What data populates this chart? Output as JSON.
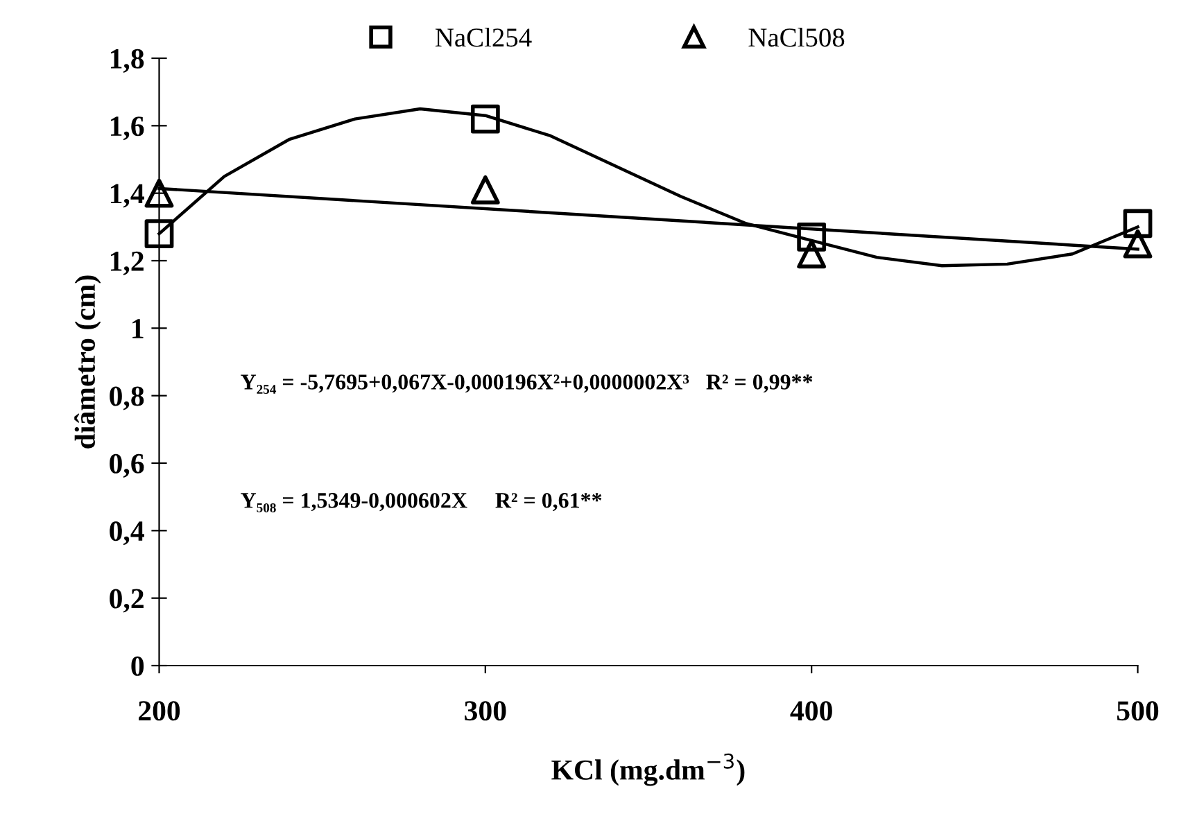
{
  "chart_data": {
    "type": "scatter",
    "xlabel": "KCl (mg.dm$^{−3}$)",
    "ylabel": "diâmetro (cm)",
    "xlim": [
      200,
      500
    ],
    "ylim": [
      0,
      1.8
    ],
    "xticks": [
      200,
      300,
      400,
      500
    ],
    "yticks": [
      {
        "value": 0,
        "label": "0"
      },
      {
        "value": 0.2,
        "label": "0,2"
      },
      {
        "value": 0.4,
        "label": "0,4"
      },
      {
        "value": 0.6,
        "label": "0,6"
      },
      {
        "value": 0.8,
        "label": "0,8"
      },
      {
        "value": 1,
        "label": "1"
      },
      {
        "value": 1.2,
        "label": "1,2"
      },
      {
        "value": 1.4,
        "label": "1,4"
      },
      {
        "value": 1.6,
        "label": "1,6"
      },
      {
        "value": 1.8,
        "label": "1,8"
      }
    ],
    "grid": false,
    "legend": "top",
    "series": [
      {
        "name": "NaCl254",
        "type": "scatter",
        "marker": "square",
        "color": "#000000",
        "x": [
          200,
          300,
          400,
          500
        ],
        "values": [
          1.28,
          1.62,
          1.27,
          1.31
        ]
      },
      {
        "name": "NaCl508",
        "type": "scatter",
        "marker": "triangle",
        "color": "#000000",
        "x": [
          200,
          300,
          400,
          500
        ],
        "values": [
          1.4,
          1.41,
          1.22,
          1.25
        ]
      },
      {
        "type": "line",
        "color": "#000000",
        "marker": "none",
        "x": [
          200,
          220,
          240,
          260,
          280,
          300,
          320,
          340,
          360,
          380,
          400,
          420,
          440,
          460,
          480,
          500
        ],
        "values": [
          1.28,
          1.45,
          1.56,
          1.62,
          1.65,
          1.63,
          1.57,
          1.48,
          1.39,
          1.31,
          1.26,
          1.21,
          1.185,
          1.19,
          1.22,
          1.3
        ]
      },
      {
        "type": "line",
        "color": "#000000",
        "marker": "none",
        "x": [
          200,
          500
        ],
        "values": [
          1.414,
          1.234
        ]
      }
    ],
    "annotations": [
      "Y₂₅₄ = -5,7695+0,067X-0,000196X²+0,0000002X³   R² = 0,99**",
      "Y₅₀₈ = 1,5349-0,000602X     R² = 0,61**"
    ]
  }
}
